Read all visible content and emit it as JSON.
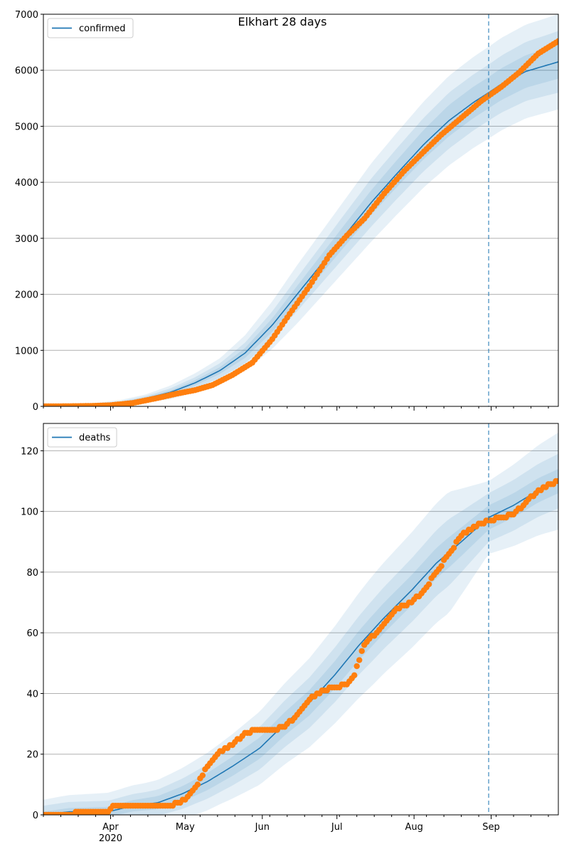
{
  "figure": {
    "suptitle": "Elkhart 28 days",
    "colors": {
      "line": "#1f77b4",
      "points": "#ff7f0e",
      "band": "#1f77b4",
      "grid": "#b0b0b0",
      "forecast_line": "#1f77b4"
    }
  },
  "chart_data": [
    {
      "type": "line",
      "title": "",
      "legend": {
        "entries": [
          "confirmed"
        ],
        "placement": "top-left"
      },
      "xlabel": "",
      "ylabel": "",
      "x_range": [
        "2020-03-05",
        "2020-09-28"
      ],
      "ylim": [
        0,
        7000
      ],
      "y_ticks": [
        0,
        1000,
        2000,
        3000,
        4000,
        5000,
        6000,
        7000
      ],
      "grid": "horizontal",
      "forecast_start": "2020-08-31",
      "model_curve": {
        "name": "confirmed",
        "dates": [
          "2020-03-05",
          "2020-03-15",
          "2020-03-25",
          "2020-04-05",
          "2020-04-15",
          "2020-04-25",
          "2020-05-05",
          "2020-05-15",
          "2020-05-25",
          "2020-06-05",
          "2020-06-15",
          "2020-06-25",
          "2020-07-05",
          "2020-07-15",
          "2020-07-25",
          "2020-08-05",
          "2020-08-15",
          "2020-08-25",
          "2020-08-31",
          "2020-09-05",
          "2020-09-15",
          "2020-09-28"
        ],
        "values": [
          0,
          5,
          20,
          60,
          140,
          250,
          420,
          640,
          950,
          1450,
          2000,
          2550,
          3100,
          3650,
          4150,
          4680,
          5100,
          5430,
          5600,
          5750,
          5980,
          6150
        ]
      },
      "observed": {
        "dates": [
          "2020-03-05",
          "2020-03-15",
          "2020-03-25",
          "2020-04-01",
          "2020-04-10",
          "2020-04-20",
          "2020-04-28",
          "2020-05-05",
          "2020-05-12",
          "2020-05-20",
          "2020-05-28",
          "2020-06-05",
          "2020-06-12",
          "2020-06-20",
          "2020-06-28",
          "2020-07-05",
          "2020-07-12",
          "2020-07-20",
          "2020-07-28",
          "2020-08-05",
          "2020-08-12",
          "2020-08-20",
          "2020-08-28",
          "2020-09-05",
          "2020-09-12",
          "2020-09-20",
          "2020-09-28"
        ],
        "values": [
          0,
          2,
          8,
          20,
          60,
          150,
          230,
          290,
          380,
          560,
          780,
          1200,
          1650,
          2150,
          2700,
          3050,
          3350,
          3800,
          4200,
          4550,
          4850,
          5150,
          5450,
          5700,
          5950,
          6300,
          6520
        ]
      },
      "bands_half_width": {
        "dates": [
          "2020-03-05",
          "2020-04-15",
          "2020-05-15",
          "2020-06-15",
          "2020-07-15",
          "2020-08-15",
          "2020-08-31",
          "2020-09-28"
        ],
        "widths": [
          [
            0,
            20,
            60,
            150,
            220,
            280,
            280,
            300
          ],
          [
            0,
            40,
            130,
            300,
            430,
            500,
            500,
            550
          ],
          [
            0,
            70,
            220,
            520,
            700,
            800,
            820,
            850
          ]
        ]
      }
    },
    {
      "type": "line",
      "title": "",
      "legend": {
        "entries": [
          "deaths"
        ],
        "placement": "top-left"
      },
      "xlabel": "",
      "ylabel": "",
      "x_range": [
        "2020-03-05",
        "2020-09-28"
      ],
      "ylim": [
        0,
        129
      ],
      "y_ticks": [
        0,
        20,
        40,
        60,
        80,
        100,
        120
      ],
      "x_tick_labels": [
        "Apr\n2020",
        "May",
        "Jun",
        "Jul",
        "Aug",
        "Sep"
      ],
      "x_tick_dates": [
        "2020-04-01",
        "2020-05-01",
        "2020-06-01",
        "2020-07-01",
        "2020-08-01",
        "2020-09-01"
      ],
      "grid": "horizontal",
      "forecast_start": "2020-08-31",
      "model_curve": {
        "name": "deaths",
        "dates": [
          "2020-03-05",
          "2020-03-15",
          "2020-03-31",
          "2020-04-10",
          "2020-04-20",
          "2020-04-30",
          "2020-05-10",
          "2020-05-20",
          "2020-05-31",
          "2020-06-10",
          "2020-06-20",
          "2020-06-30",
          "2020-07-10",
          "2020-07-20",
          "2020-07-31",
          "2020-08-10",
          "2020-08-20",
          "2020-08-31",
          "2020-09-10",
          "2020-09-20",
          "2020-09-28"
        ],
        "values": [
          0,
          1,
          1,
          3,
          4,
          7,
          11,
          16,
          22,
          30,
          37,
          46,
          56,
          65,
          74,
          83,
          90,
          98,
          102,
          107,
          110
        ]
      },
      "observed": {
        "dates": [
          "2020-03-05",
          "2020-03-31",
          "2020-04-02",
          "2020-04-15",
          "2020-04-25",
          "2020-05-01",
          "2020-05-05",
          "2020-05-10",
          "2020-05-15",
          "2020-05-20",
          "2020-05-25",
          "2020-05-31",
          "2020-06-05",
          "2020-06-10",
          "2020-06-15",
          "2020-06-20",
          "2020-06-25",
          "2020-06-30",
          "2020-07-05",
          "2020-07-08",
          "2020-07-12",
          "2020-07-18",
          "2020-07-25",
          "2020-07-31",
          "2020-08-05",
          "2020-08-10",
          "2020-08-15",
          "2020-08-20",
          "2020-08-25",
          "2020-08-31",
          "2020-09-05",
          "2020-09-10",
          "2020-09-15",
          "2020-09-20",
          "2020-09-28"
        ],
        "values": [
          0,
          1,
          3,
          3,
          3,
          5,
          9,
          16,
          21,
          23,
          27,
          28,
          28,
          29,
          33,
          38,
          41,
          42,
          43,
          46,
          56,
          61,
          68,
          70,
          74,
          80,
          86,
          92,
          95,
          97,
          98,
          99,
          103,
          107,
          110
        ]
      },
      "bands_half_width": {
        "dates": [
          "2020-03-05",
          "2020-04-15",
          "2020-05-15",
          "2020-06-15",
          "2020-07-15",
          "2020-08-15",
          "2020-08-31",
          "2020-09-28"
        ],
        "widths": [
          [
            1,
            2,
            3,
            4,
            5,
            5,
            4,
            4
          ],
          [
            3,
            4,
            6,
            8,
            10,
            11,
            8,
            9
          ],
          [
            5,
            7,
            10,
            14,
            18,
            20,
            12,
            16
          ]
        ]
      }
    }
  ]
}
